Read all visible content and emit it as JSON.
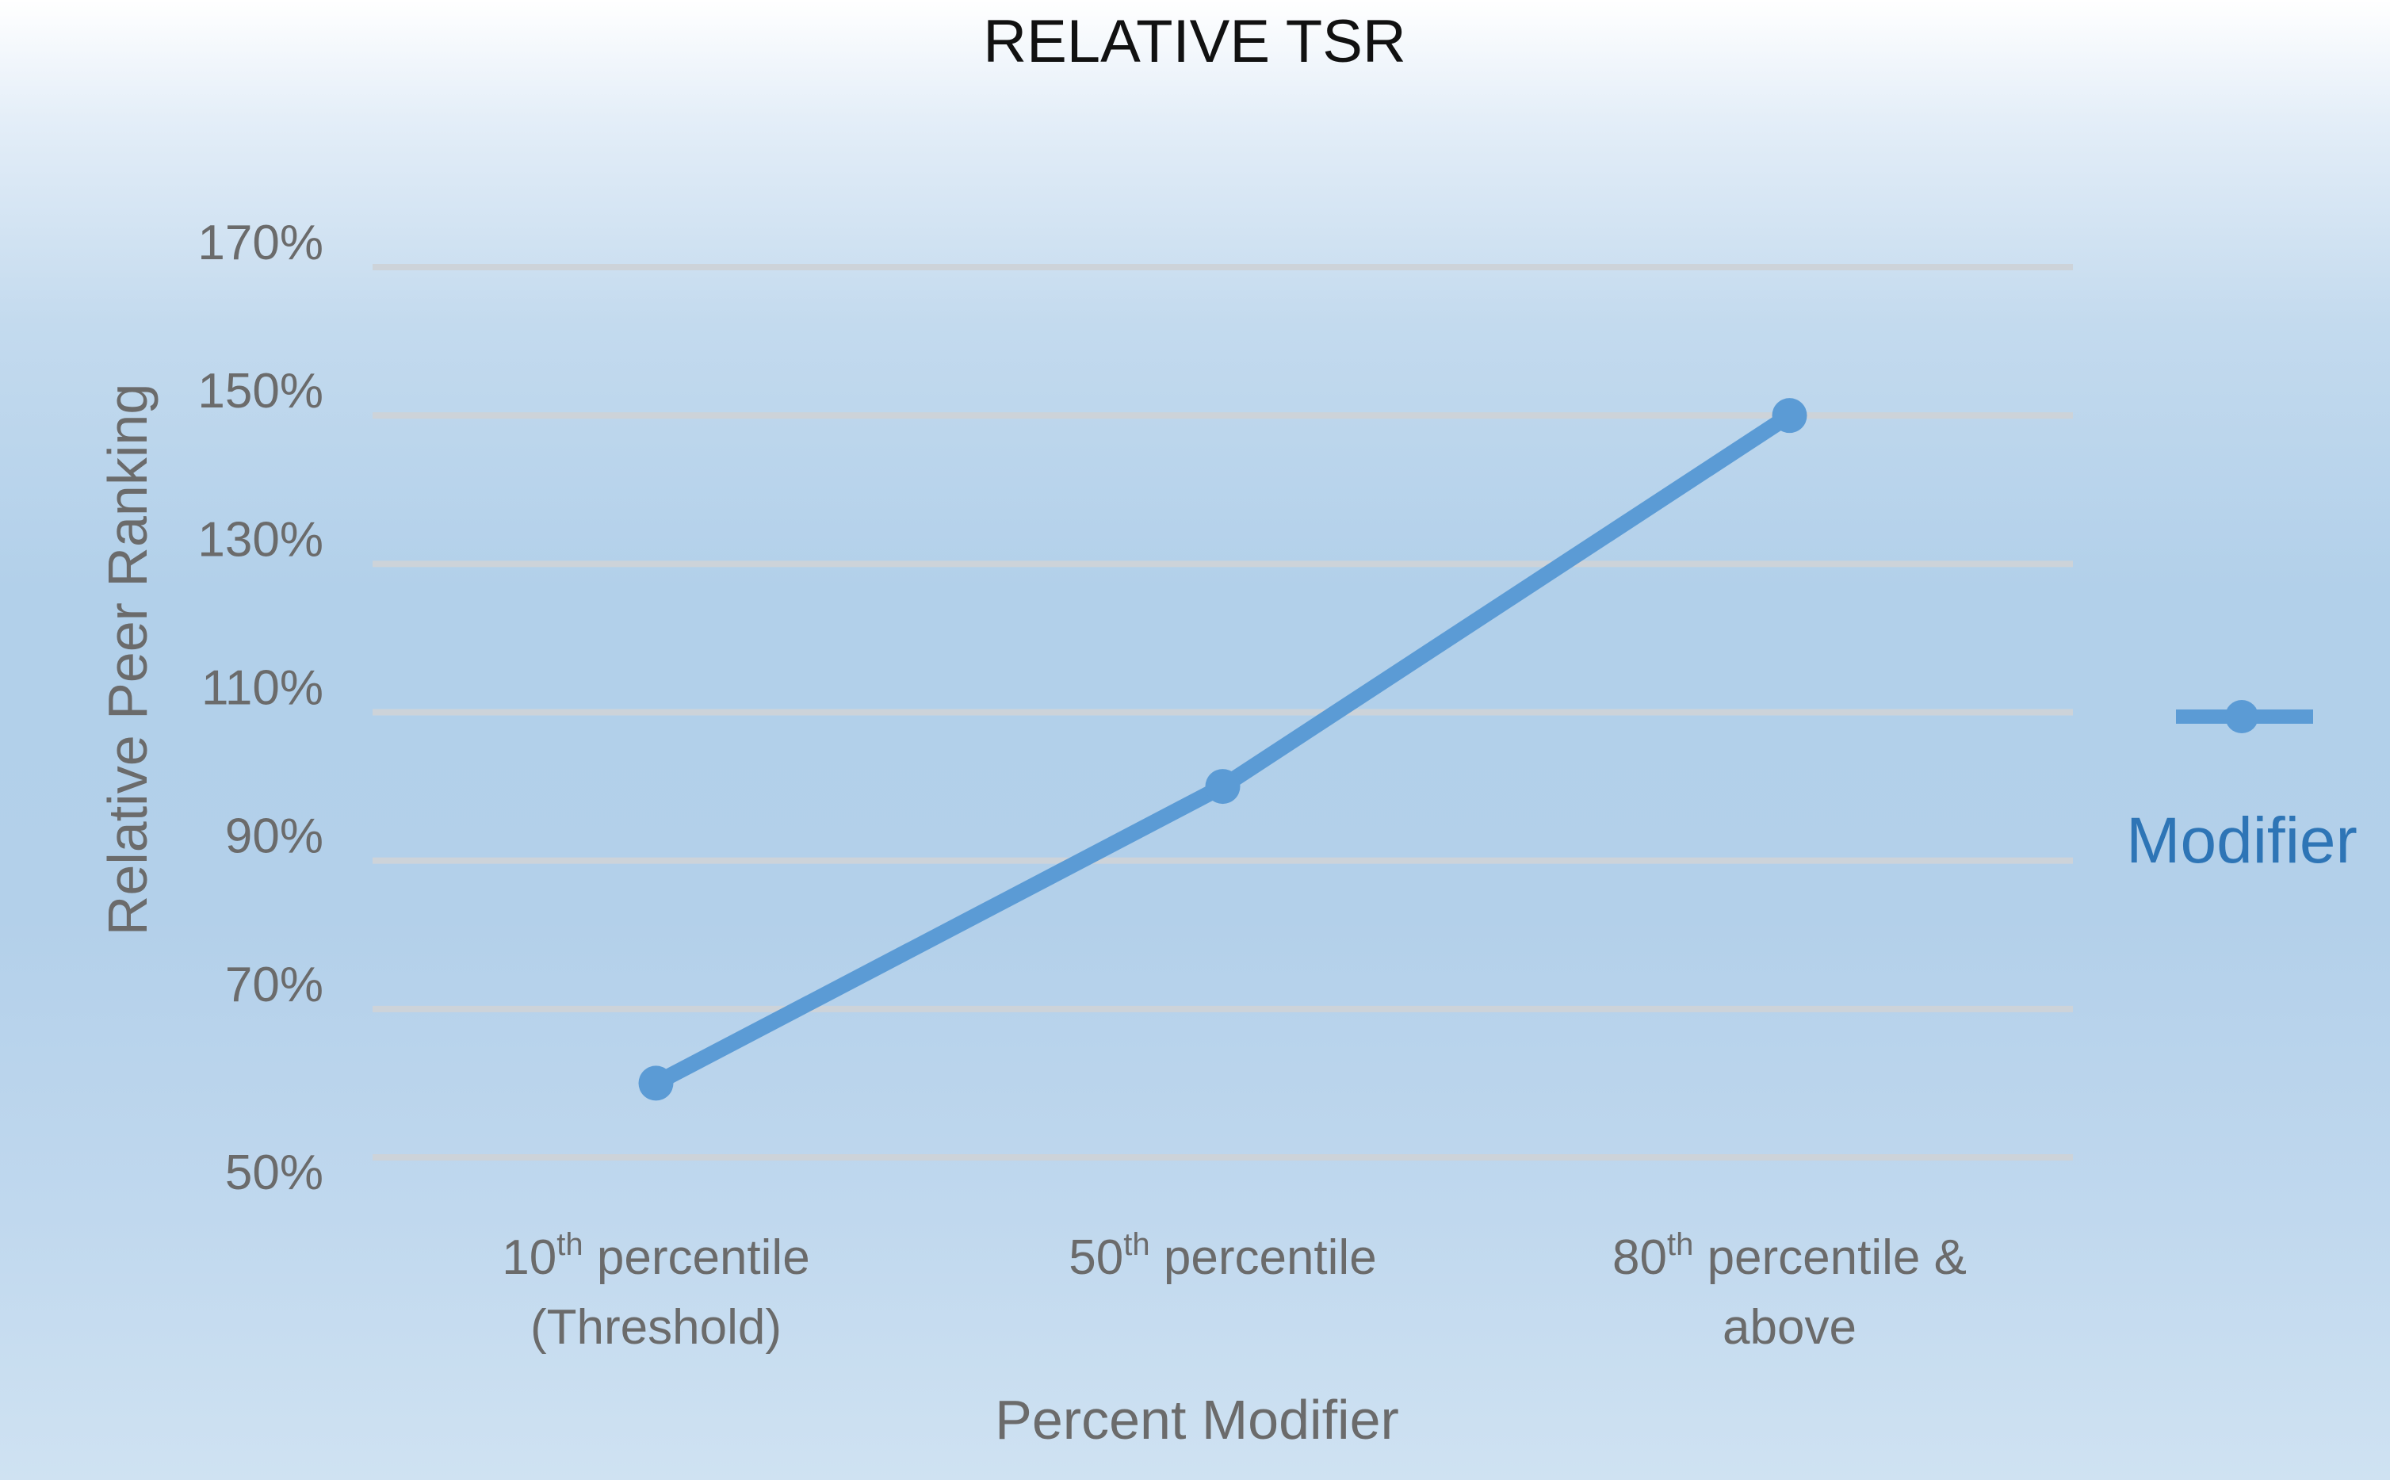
{
  "chart_data": {
    "type": "line",
    "title": "RELATIVE TSR",
    "xlabel": "Percent Modifier",
    "ylabel": "Relative Peer Ranking",
    "categories": [
      [
        "10",
        "th",
        " percentile",
        "(Threshold)"
      ],
      [
        "50",
        "th",
        " percentile",
        ""
      ],
      [
        "80",
        "th",
        " percentile &",
        "above"
      ]
    ],
    "y_ticks": [
      "50%",
      "70%",
      "90%",
      "110%",
      "130%",
      "150%",
      "170%"
    ],
    "ylim": [
      50,
      170
    ],
    "grid": true,
    "legend_position": "right",
    "series": [
      {
        "name": "Modifier",
        "values": [
          60,
          100,
          150
        ],
        "color": "#5b9bd5"
      }
    ]
  },
  "colors": {
    "line": "#5b9bd5",
    "legend_text": "#2e75b6",
    "grid": "#cdd3d9",
    "tick_text": "#6b6b6b"
  }
}
